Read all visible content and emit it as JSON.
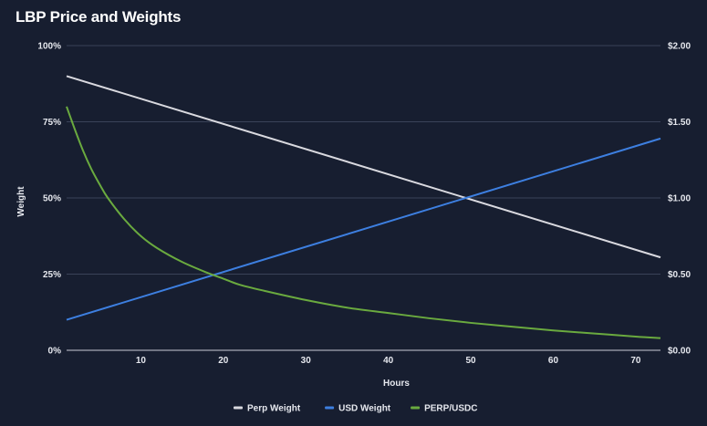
{
  "chart_data": {
    "type": "line",
    "title": "LBP Price and Weights",
    "xlabel": "Hours",
    "ylabel": "Weight",
    "y2label": "",
    "xlim": [
      1,
      73
    ],
    "ylim": [
      0,
      100
    ],
    "y2lim": [
      0,
      2
    ],
    "x_ticks": [
      10,
      20,
      30,
      40,
      50,
      60,
      70
    ],
    "y_ticks": [
      {
        "value": 0,
        "label": "0%"
      },
      {
        "value": 25,
        "label": "25%"
      },
      {
        "value": 50,
        "label": "50%"
      },
      {
        "value": 75,
        "label": "75%"
      },
      {
        "value": 100,
        "label": "100%"
      }
    ],
    "y2_ticks": [
      {
        "value": 0,
        "label": "$0.00"
      },
      {
        "value": 0.5,
        "label": "$0.50"
      },
      {
        "value": 1,
        "label": "$1.00"
      },
      {
        "value": 1.5,
        "label": "$1.50"
      },
      {
        "value": 2,
        "label": "$2.00"
      }
    ],
    "grid": true,
    "legend_position": "bottom-center",
    "series": [
      {
        "name": "Perp Weight",
        "axis": "left",
        "color": "#d9d9df",
        "x": [
          1,
          73
        ],
        "values": [
          90,
          30.5
        ]
      },
      {
        "name": "USD Weight",
        "axis": "left",
        "color": "#3d7fe0",
        "x": [
          1,
          73
        ],
        "values": [
          10,
          69.5
        ]
      },
      {
        "name": "PERP/USDC",
        "axis": "right",
        "color": "#6aaa3f",
        "x": [
          1,
          2,
          3,
          4,
          5,
          6,
          8,
          10,
          12,
          15,
          18,
          20,
          22,
          25,
          30,
          35,
          40,
          45,
          50,
          55,
          60,
          65,
          70,
          73
        ],
        "values": [
          1.6,
          1.45,
          1.31,
          1.19,
          1.09,
          1.0,
          0.86,
          0.75,
          0.67,
          0.58,
          0.51,
          0.47,
          0.43,
          0.39,
          0.33,
          0.28,
          0.245,
          0.21,
          0.18,
          0.155,
          0.13,
          0.11,
          0.09,
          0.08
        ]
      }
    ]
  }
}
